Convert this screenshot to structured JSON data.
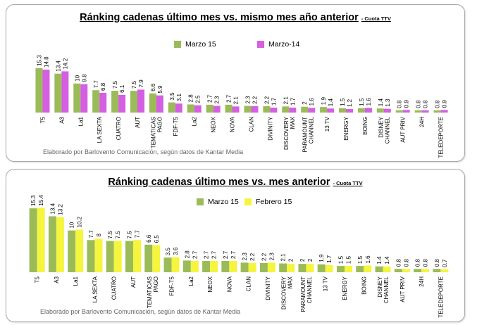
{
  "chart_data": [
    {
      "type": "bar",
      "title": "Ránking cadenas último mes vs. mismo mes año anterior",
      "subtitle": "- Cuota TTV",
      "categories": [
        "T5",
        "A3",
        "La1",
        "LA SEXTA",
        "CUATRO",
        "AUT",
        "TEMATICAS PAGO",
        "FDF-T5",
        "La2",
        "NEOX",
        "NOVA",
        "CLAN",
        "DIVINITY",
        "DISCOVERY MAX",
        "PARAMOUNT CHANNEL",
        "13 TV",
        "ENERGY",
        "BOING",
        "DISNEY CHANNEL",
        "AUT PRIV",
        "24H",
        "TELEDEPORTE"
      ],
      "series": [
        {
          "name": "Marzo 15",
          "color": "#9bbb59",
          "values": [
            15.3,
            13.4,
            10,
            7.7,
            7.5,
            7.5,
            6.6,
            3.5,
            2.8,
            2.7,
            2.7,
            2.3,
            2.2,
            2.1,
            2,
            1.9,
            1.5,
            1.5,
            1.4,
            0.8,
            0.8,
            0.8
          ]
        },
        {
          "name": "Marzo-14",
          "color": "#d45fe0",
          "values": [
            14.8,
            14.2,
            9.8,
            6.8,
            6.1,
            7.9,
            5.9,
            3.1,
            2.5,
            2.3,
            2.1,
            2.2,
            1.7,
            1.7,
            1.6,
            1.4,
            1.2,
            1.6,
            1.3,
            0.9,
            0.8,
            0.9
          ]
        }
      ],
      "ylim": [
        0,
        16
      ],
      "credit": "Elaborado por Barlovento Comunicación, según datos de Kantar Media"
    },
    {
      "type": "bar",
      "title": "Ránking cadenas último mes vs. mes anterior",
      "subtitle": "- Cuota TTV",
      "categories": [
        "T5",
        "A3",
        "La1",
        "LA SEXTA",
        "CUATRO",
        "AUT",
        "TEMATICAS PAGO",
        "FDF-T5",
        "La2",
        "NEOX",
        "NOVA",
        "CLAN",
        "DIVINITY",
        "DISCOVERY MAX",
        "PARAMOUNT CHANNEL",
        "13 TV",
        "ENERGY",
        "BOING",
        "DISNEY CHANNEL",
        "AUT PRIV",
        "24H",
        "TELEDEPORTE"
      ],
      "series": [
        {
          "name": "Marzo 15",
          "color": "#9bbb59",
          "values": [
            15.3,
            13.4,
            10,
            7.7,
            7.5,
            7.5,
            6.6,
            3.5,
            2.8,
            2.7,
            2.7,
            2.3,
            2.2,
            2.1,
            2,
            1.9,
            1.5,
            1.5,
            1.4,
            0.8,
            0.8,
            0.8
          ]
        },
        {
          "name": "Febrero 15",
          "color": "#f5f53f",
          "values": [
            15.4,
            13.2,
            10.2,
            8,
            7.5,
            7.7,
            6.5,
            3.6,
            2.7,
            2.7,
            2.7,
            2.2,
            2.3,
            2,
            2,
            1.7,
            1.5,
            1.6,
            1.4,
            0.8,
            0.8,
            0.7
          ]
        }
      ],
      "ylim": [
        0,
        16
      ],
      "credit": "Elaborado por Barlovento Comunicación, según datos de Kantar Media"
    }
  ]
}
